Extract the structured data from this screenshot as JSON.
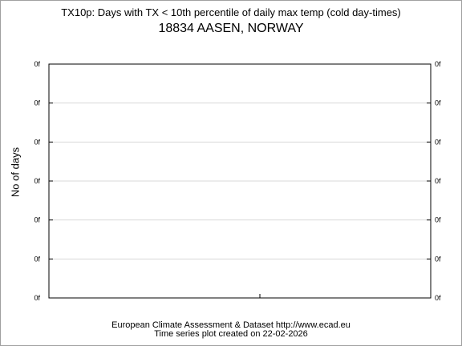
{
  "chart_data": {
    "type": "line",
    "title": "TX10p: Days with TX < 10th percentile of daily max temp (cold day-times)",
    "subtitle": "18834 AASEN, NORWAY",
    "ylabel": "No of days",
    "xlabel": "",
    "y_tick_labels": [
      "0f",
      "0f",
      "0f",
      "0f",
      "0f",
      "0f",
      "0f"
    ],
    "series": [],
    "grid": true,
    "legend": "none"
  },
  "footer": {
    "line1": "European Climate Assessment & Dataset  http://www.ecad.eu",
    "line2": "Time series plot created on 22-02-2026"
  }
}
